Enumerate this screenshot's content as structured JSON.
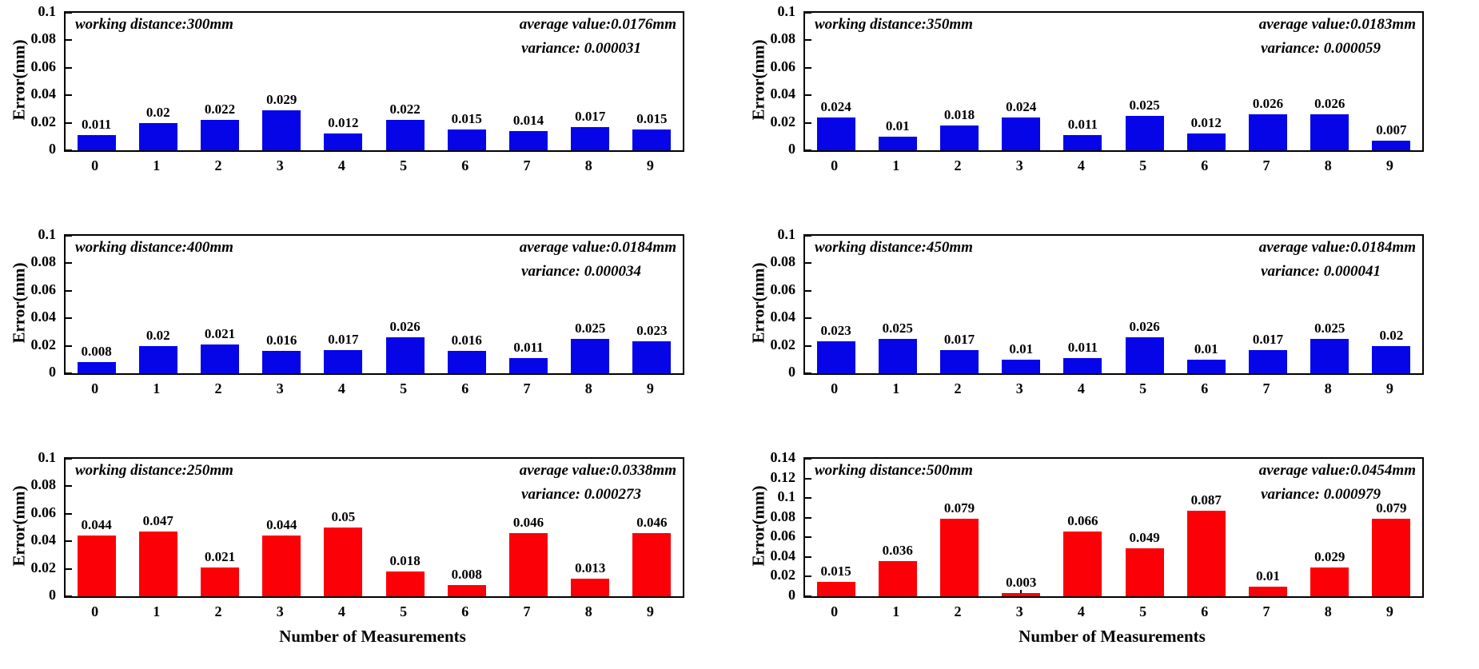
{
  "figure": {
    "background": "#ffffff",
    "text_color": "#000000",
    "axis_color": "#000000"
  },
  "chart_data": [
    {
      "type": "bar",
      "id": "working-distance-300",
      "annotations": {
        "working_distance": "working distance:300mm",
        "average_value": "average value:0.0176mm",
        "variance": "variance: 0.000031"
      },
      "ylabel": "Error(mm)",
      "xlabel": "",
      "categories": [
        "0",
        "1",
        "2",
        "3",
        "4",
        "5",
        "6",
        "7",
        "8",
        "9"
      ],
      "values": [
        0.011,
        0.02,
        0.022,
        0.029,
        0.012,
        0.022,
        0.015,
        0.014,
        0.017,
        0.015
      ],
      "bar_color": "#0505e8",
      "ylim": [
        0,
        0.1
      ],
      "yticks": [
        "0",
        "0.02",
        "0.04",
        "0.06",
        "0.08",
        "0.1"
      ],
      "grid": false
    },
    {
      "type": "bar",
      "id": "working-distance-350",
      "annotations": {
        "working_distance": "working distance:350mm",
        "average_value": "average value:0.0183mm",
        "variance": "variance: 0.000059"
      },
      "ylabel": "Error(mm)",
      "xlabel": "",
      "categories": [
        "0",
        "1",
        "2",
        "3",
        "4",
        "5",
        "6",
        "7",
        "8",
        "9"
      ],
      "values": [
        0.024,
        0.01,
        0.018,
        0.024,
        0.011,
        0.025,
        0.012,
        0.026,
        0.026,
        0.007
      ],
      "bar_color": "#0505e8",
      "ylim": [
        0,
        0.1
      ],
      "yticks": [
        "0",
        "0.02",
        "0.04",
        "0.06",
        "0.08",
        "0.1"
      ],
      "grid": false
    },
    {
      "type": "bar",
      "id": "working-distance-400",
      "annotations": {
        "working_distance": "working distance:400mm",
        "average_value": "average value:0.0184mm",
        "variance": "variance: 0.000034"
      },
      "ylabel": "Error(mm)",
      "xlabel": "",
      "categories": [
        "0",
        "1",
        "2",
        "3",
        "4",
        "5",
        "6",
        "7",
        "8",
        "9"
      ],
      "values": [
        0.008,
        0.02,
        0.021,
        0.016,
        0.017,
        0.026,
        0.016,
        0.011,
        0.025,
        0.023
      ],
      "bar_color": "#0505e8",
      "ylim": [
        0,
        0.1
      ],
      "yticks": [
        "0",
        "0.02",
        "0.04",
        "0.06",
        "0.08",
        "0.1"
      ],
      "grid": false
    },
    {
      "type": "bar",
      "id": "working-distance-450",
      "annotations": {
        "working_distance": "working distance:450mm",
        "average_value": "average value:0.0184mm",
        "variance": "variance: 0.000041"
      },
      "ylabel": "Error(mm)",
      "xlabel": "",
      "categories": [
        "0",
        "1",
        "2",
        "3",
        "4",
        "5",
        "6",
        "7",
        "8",
        "9"
      ],
      "values": [
        0.023,
        0.025,
        0.017,
        0.01,
        0.011,
        0.026,
        0.01,
        0.017,
        0.025,
        0.02
      ],
      "bar_color": "#0505e8",
      "ylim": [
        0,
        0.1
      ],
      "yticks": [
        "0",
        "0.02",
        "0.04",
        "0.06",
        "0.08",
        "0.1"
      ],
      "grid": false
    },
    {
      "type": "bar",
      "id": "working-distance-250",
      "annotations": {
        "working_distance": "working distance:250mm",
        "average_value": "average value:0.0338mm",
        "variance": "variance: 0.000273"
      },
      "ylabel": "Error(mm)",
      "xlabel": "Number of Measurements",
      "categories": [
        "0",
        "1",
        "2",
        "3",
        "4",
        "5",
        "6",
        "7",
        "8",
        "9"
      ],
      "values": [
        0.044,
        0.047,
        0.021,
        0.044,
        0.05,
        0.018,
        0.008,
        0.046,
        0.013,
        0.046
      ],
      "bar_color": "#fb0006",
      "ylim": [
        0,
        0.1
      ],
      "yticks": [
        "0",
        "0.02",
        "0.04",
        "0.06",
        "0.08",
        "0.1"
      ],
      "grid": false
    },
    {
      "type": "bar",
      "id": "working-distance-500",
      "annotations": {
        "working_distance": "working distance:500mm",
        "average_value": "average value:0.0454mm",
        "variance": "variance: 0.000979"
      },
      "ylabel": "Error(mm)",
      "xlabel": "Number of Measurements",
      "categories": [
        "0",
        "1",
        "2",
        "3",
        "4",
        "5",
        "6",
        "7",
        "8",
        "9"
      ],
      "values": [
        0.015,
        0.036,
        0.079,
        0.003,
        0.066,
        0.049,
        0.087,
        0.01,
        0.029,
        0.079
      ],
      "bar_color": "#fb0006",
      "ylim": [
        0,
        0.14
      ],
      "yticks": [
        "0",
        "0.02",
        "0.04",
        "0.06",
        "0.08",
        "0.1",
        "0.12",
        "0.14"
      ],
      "grid": false
    }
  ]
}
